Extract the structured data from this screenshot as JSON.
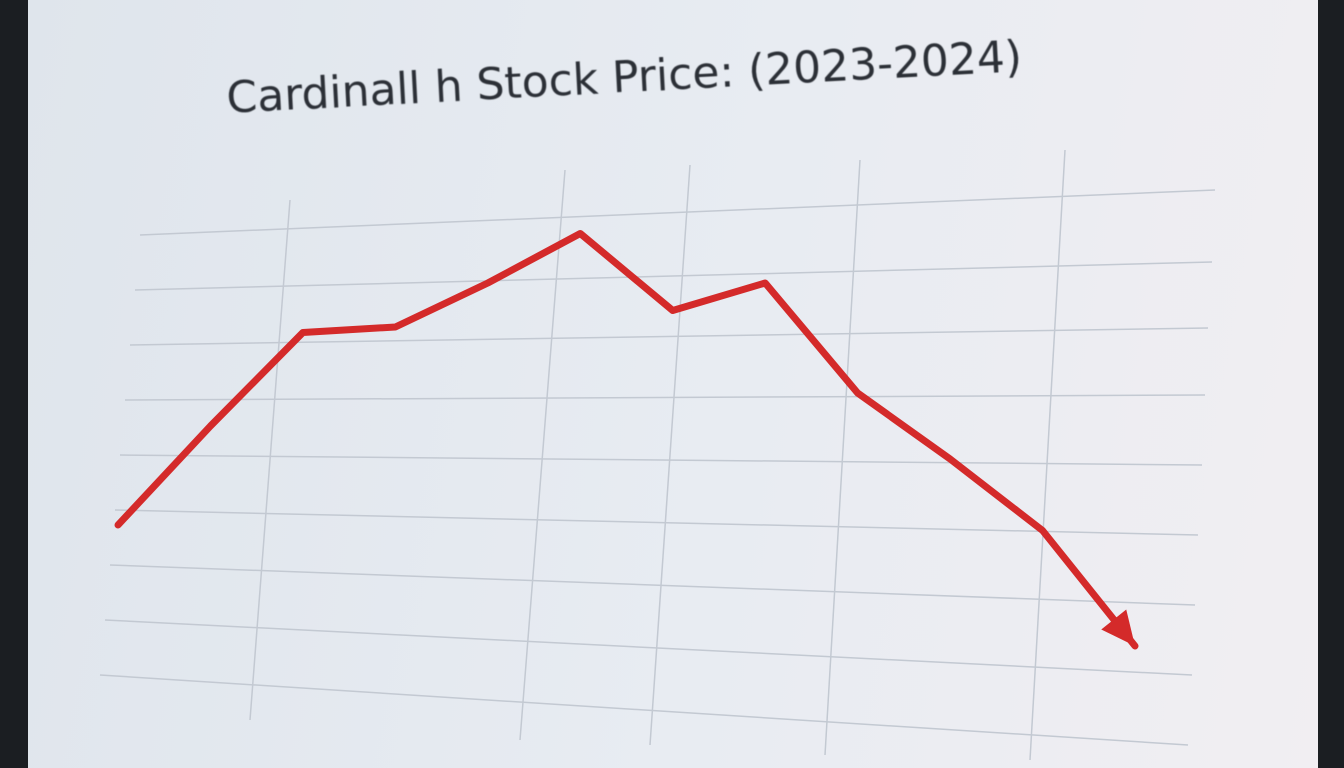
{
  "chart_data": {
    "type": "line",
    "title": "Cardinall h Stock Price: (2023-2024)",
    "categories": [
      null,
      null,
      null,
      null,
      null,
      null,
      null,
      null,
      null,
      null,
      null,
      null
    ],
    "series": [
      {
        "name": null,
        "color": "#d42a2a",
        "values": [
          3.0,
          4.8,
          6.5,
          6.6,
          7.4,
          8.3,
          6.9,
          7.4,
          5.4,
          4.2,
          2.9,
          0.8
        ]
      }
    ],
    "ylim": [
      0,
      9
    ],
    "grid": true
  }
}
